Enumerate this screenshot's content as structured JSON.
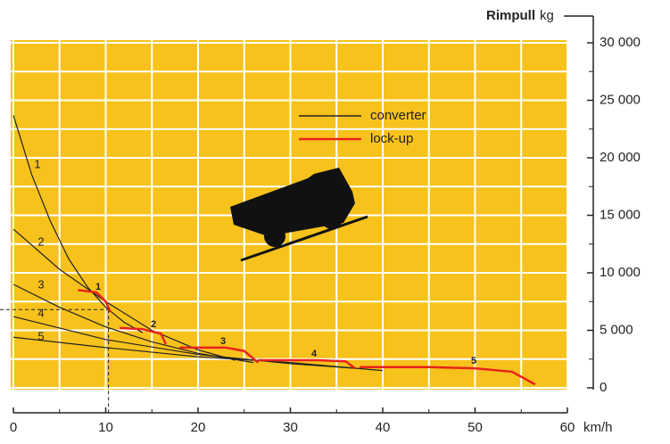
{
  "chart_data": {
    "type": "line",
    "y_title": "Rimpull",
    "y_unit": "kg",
    "x_unit": "km/h",
    "xlim": [
      0,
      60
    ],
    "xticks": [
      0,
      10,
      20,
      30,
      40,
      50,
      60
    ],
    "ylim": [
      0,
      30000
    ],
    "yticks": [
      0,
      {
        "value": 5000,
        "label": "5 000"
      },
      {
        "value": 10000,
        "label": "10 000"
      },
      {
        "value": 15000,
        "label": "15 000"
      },
      {
        "value": 20000,
        "label": "20 000"
      },
      {
        "value": 25000,
        "label": "25 000"
      },
      {
        "value": 30000,
        "label": "30 000"
      }
    ],
    "grid": true,
    "background": "#f7c21b",
    "reference": {
      "x": 10.3,
      "y": 6800
    },
    "series": [
      {
        "name": "converter",
        "color": "#222222",
        "lines": [
          {
            "label": "1",
            "x": [
              0,
              2,
              4,
              6,
              8,
              10,
              12,
              14
            ],
            "values": [
              23700,
              18500,
              14500,
              11200,
              8800,
              7000,
              5700,
              4800
            ]
          },
          {
            "label": "2",
            "x": [
              0,
              5,
              10,
              15,
              20,
              24
            ],
            "values": [
              13800,
              10300,
              7500,
              5000,
              3300,
              2400
            ]
          },
          {
            "label": "3",
            "x": [
              0,
              5,
              10,
              15,
              20,
              26
            ],
            "values": [
              9000,
              7000,
              5300,
              4000,
              3000,
              2200
            ]
          },
          {
            "label": "4",
            "x": [
              0,
              10,
              20,
              30,
              37
            ],
            "values": [
              6200,
              4200,
              2900,
              2100,
              1700
            ]
          },
          {
            "label": "5",
            "x": [
              0,
              10,
              20,
              30,
              40
            ],
            "values": [
              4400,
              3500,
              2700,
              2200,
              1500
            ]
          }
        ]
      },
      {
        "name": "lock-up",
        "color": "#e8231c",
        "lines": [
          {
            "label": "1",
            "x": [
              7,
              9,
              10,
              10.5
            ],
            "values": [
              8500,
              8300,
              7500,
              6600
            ]
          },
          {
            "label": "2",
            "x": [
              11.5,
              14,
              16,
              16.5
            ],
            "values": [
              5200,
              5100,
              4700,
              3800
            ]
          },
          {
            "label": "3",
            "x": [
              18,
              23,
              25,
              26.5
            ],
            "values": [
              3500,
              3500,
              3200,
              2200
            ]
          },
          {
            "label": "4",
            "x": [
              26.5,
              33,
              36,
              37
            ],
            "values": [
              2400,
              2400,
              2300,
              1700
            ]
          },
          {
            "label": "5",
            "x": [
              37.5,
              45,
              50,
              54,
              56.5
            ],
            "values": [
              1800,
              1800,
              1700,
              1400,
              300
            ]
          }
        ]
      }
    ]
  }
}
